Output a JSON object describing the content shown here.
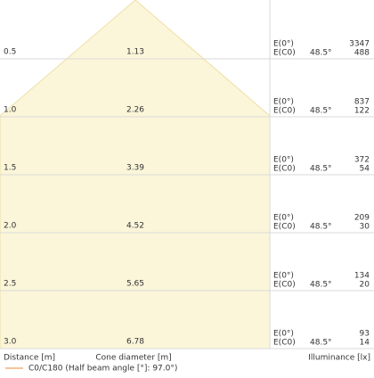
{
  "legend": "C0/C180 (Half beam angle [°]: 97.0°)",
  "axis_labels": {
    "distance": "Distance [m]",
    "diameter": "Cone diameter [m]",
    "illuminance": "Illuminance [lx]"
  },
  "e_labels": [
    "E(0°)",
    "E(C0)"
  ],
  "rows": [
    {
      "distance": "0.5",
      "diameter": "1.13",
      "angle": "48.5°",
      "e0": "3347",
      "ec0": "488"
    },
    {
      "distance": "1.0",
      "diameter": "2.26",
      "angle": "48.5°",
      "e0": "837",
      "ec0": "122"
    },
    {
      "distance": "1.5",
      "diameter": "3.39",
      "angle": "48.5°",
      "e0": "372",
      "ec0": "54"
    },
    {
      "distance": "2.0",
      "diameter": "4.52",
      "angle": "48.5°",
      "e0": "209",
      "ec0": "30"
    },
    {
      "distance": "2.5",
      "diameter": "5.65",
      "angle": "48.5°",
      "e0": "134",
      "ec0": "20"
    },
    {
      "distance": "3.0",
      "diameter": "6.78",
      "angle": "48.5°",
      "e0": "93",
      "ec0": "14"
    }
  ]
}
